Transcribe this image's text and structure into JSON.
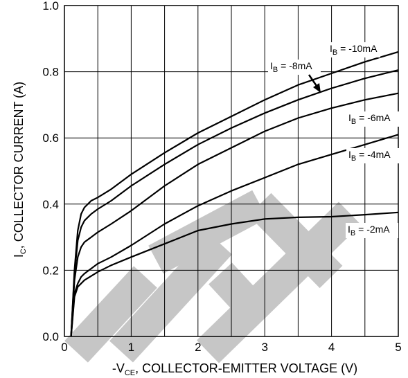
{
  "chart_data": {
    "type": "line",
    "xlim": [
      0,
      5
    ],
    "ylim": [
      0,
      1.0
    ],
    "grid": true,
    "x_ticks": [
      "0",
      "1",
      "2",
      "3",
      "4",
      "5"
    ],
    "y_ticks": [
      "0.0",
      "0.2",
      "0.4",
      "0.6",
      "0.8",
      "1.0"
    ],
    "xlabel": {
      "pre": "-V",
      "sub": "CE",
      "post": ", COLLECTOR-EMITTER VOLTAGE (V)"
    },
    "ylabel": {
      "pre": "I",
      "sub": "C",
      "post": ", COLLECTOR CURRENT (A)"
    },
    "series": [
      {
        "label_pre": "I",
        "label_sub": "B",
        "label_post": " = -10mA",
        "points": [
          [
            0.1,
            0
          ],
          [
            0.15,
            0.2
          ],
          [
            0.2,
            0.32
          ],
          [
            0.25,
            0.37
          ],
          [
            0.3,
            0.39
          ],
          [
            0.4,
            0.41
          ],
          [
            0.5,
            0.42
          ],
          [
            0.7,
            0.445
          ],
          [
            1.0,
            0.49
          ],
          [
            1.5,
            0.555
          ],
          [
            2.0,
            0.615
          ],
          [
            2.5,
            0.665
          ],
          [
            3.0,
            0.715
          ],
          [
            3.5,
            0.76
          ],
          [
            4.0,
            0.795
          ],
          [
            4.5,
            0.83
          ],
          [
            5.0,
            0.86
          ]
        ]
      },
      {
        "label_pre": "I",
        "label_sub": "B",
        "label_post": " = -8mA",
        "points": [
          [
            0.1,
            0
          ],
          [
            0.15,
            0.19
          ],
          [
            0.2,
            0.29
          ],
          [
            0.25,
            0.33
          ],
          [
            0.3,
            0.35
          ],
          [
            0.4,
            0.37
          ],
          [
            0.5,
            0.385
          ],
          [
            0.7,
            0.41
          ],
          [
            1.0,
            0.455
          ],
          [
            1.5,
            0.52
          ],
          [
            2.0,
            0.58
          ],
          [
            2.5,
            0.63
          ],
          [
            3.0,
            0.675
          ],
          [
            3.5,
            0.715
          ],
          [
            4.0,
            0.75
          ],
          [
            4.5,
            0.78
          ],
          [
            5.0,
            0.805
          ]
        ]
      },
      {
        "label_pre": "I",
        "label_sub": "B",
        "label_post": " = -6mA",
        "points": [
          [
            0.1,
            0
          ],
          [
            0.15,
            0.17
          ],
          [
            0.2,
            0.24
          ],
          [
            0.25,
            0.27
          ],
          [
            0.3,
            0.285
          ],
          [
            0.4,
            0.3
          ],
          [
            0.5,
            0.315
          ],
          [
            0.7,
            0.34
          ],
          [
            1.0,
            0.38
          ],
          [
            1.5,
            0.455
          ],
          [
            2.0,
            0.52
          ],
          [
            2.5,
            0.57
          ],
          [
            3.0,
            0.62
          ],
          [
            3.5,
            0.66
          ],
          [
            4.0,
            0.69
          ],
          [
            4.5,
            0.715
          ],
          [
            5.0,
            0.735
          ]
        ]
      },
      {
        "label_pre": "I",
        "label_sub": "B",
        "label_post": " = -4mA",
        "points": [
          [
            0.1,
            0
          ],
          [
            0.15,
            0.13
          ],
          [
            0.2,
            0.16
          ],
          [
            0.25,
            0.18
          ],
          [
            0.3,
            0.19
          ],
          [
            0.4,
            0.205
          ],
          [
            0.5,
            0.22
          ],
          [
            0.7,
            0.24
          ],
          [
            1.0,
            0.275
          ],
          [
            1.5,
            0.34
          ],
          [
            2.0,
            0.395
          ],
          [
            2.5,
            0.44
          ],
          [
            3.0,
            0.48
          ],
          [
            3.5,
            0.52
          ],
          [
            4.0,
            0.55
          ],
          [
            4.5,
            0.58
          ],
          [
            5.0,
            0.61
          ]
        ]
      },
      {
        "label_pre": "I",
        "label_sub": "B",
        "label_post": " = -2mA",
        "points": [
          [
            0.1,
            0
          ],
          [
            0.15,
            0.12
          ],
          [
            0.2,
            0.15
          ],
          [
            0.3,
            0.17
          ],
          [
            0.5,
            0.195
          ],
          [
            0.7,
            0.215
          ],
          [
            1.0,
            0.24
          ],
          [
            1.5,
            0.28
          ],
          [
            2.0,
            0.32
          ],
          [
            2.5,
            0.34
          ],
          [
            3.0,
            0.355
          ],
          [
            3.5,
            0.36
          ],
          [
            4.0,
            0.362
          ],
          [
            4.5,
            0.368
          ],
          [
            5.0,
            0.375
          ]
        ]
      }
    ]
  },
  "watermark_text": "TE",
  "colors": {
    "line": "#000000",
    "grid": "#000000",
    "watermark": "#c6c6c6"
  }
}
